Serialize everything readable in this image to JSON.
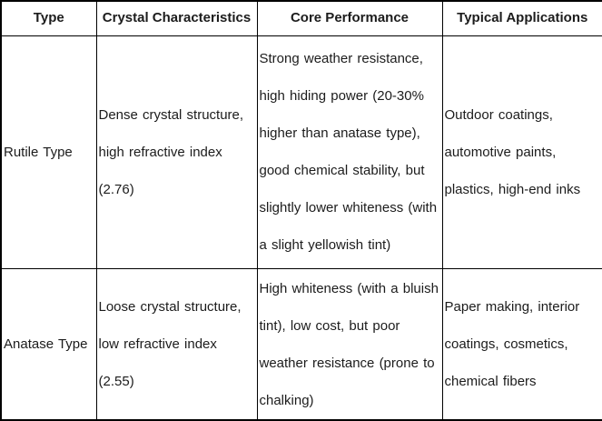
{
  "table": {
    "title_semantic": "Titanium dioxide crystal type comparison table",
    "headers": {
      "type": "Type",
      "crystal": "Crystal Characteristics",
      "performance": "Core Performance",
      "applications": "Typical Applications"
    },
    "rows": [
      {
        "type": "Rutile Type",
        "crystal": "Dense crystal structure, high refractive index (2.76)",
        "performance": "Strong weather resistance, high hiding power (20-30% higher than anatase type), good chemical stability, but slightly lower whiteness (with a slight yellowish tint)",
        "applications": "Outdoor coatings, automotive paints, plastics, high-end inks"
      },
      {
        "type": "Anatase Type",
        "crystal": "Loose crystal structure, low refractive index (2.55)",
        "performance": "High whiteness (with a bluish tint), low cost, but poor weather resistance (prone to chalking)",
        "applications": "Paper making, interior coatings, cosmetics, chemical fibers"
      }
    ],
    "colors": {
      "border": "#000000",
      "text": "#1c1c1c",
      "background": "#ffffff"
    }
  }
}
